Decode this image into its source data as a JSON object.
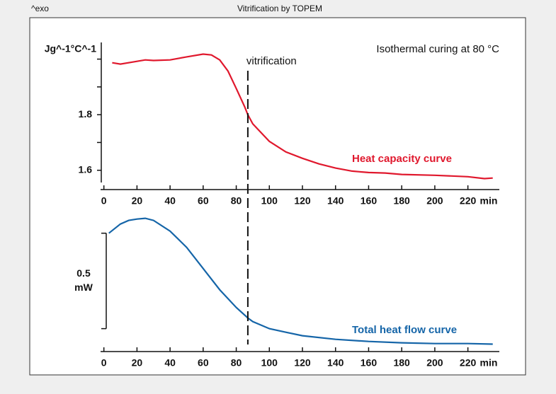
{
  "chart_data": [
    {
      "type": "line",
      "corner_label": "^exo",
      "title": "Vitrification by TOPEM",
      "subtitle": "Isothermal curing at 80 °C",
      "ylabel": "Jg^-1°C^-1",
      "x_unit": "min",
      "vline_x": 87,
      "vline_label": "vitrification",
      "xlim": [
        -2,
        239
      ],
      "xticks": [
        0,
        20,
        40,
        60,
        80,
        100,
        120,
        140,
        160,
        180,
        200,
        220
      ],
      "ylim": [
        1.556,
        2.06
      ],
      "yticks": [
        1.6,
        1.8
      ],
      "minor_yticks": [
        1.7,
        1.9,
        2.0
      ],
      "series": [
        {
          "name": "Heat capacity curve",
          "color": "#e0182d",
          "x": [
            5,
            10,
            20,
            25,
            30,
            40,
            50,
            60,
            65,
            70,
            75,
            80,
            85,
            87,
            90,
            100,
            110,
            120,
            130,
            140,
            150,
            160,
            170,
            180,
            200,
            220,
            230,
            235
          ],
          "values": [
            1.987,
            1.982,
            1.992,
            1.997,
            1.995,
            1.997,
            2.008,
            2.018,
            2.015,
            1.997,
            1.957,
            1.894,
            1.83,
            1.8,
            1.767,
            1.704,
            1.666,
            1.643,
            1.623,
            1.608,
            1.597,
            1.592,
            1.59,
            1.585,
            1.582,
            1.577,
            1.57,
            1.572
          ]
        }
      ]
    },
    {
      "type": "line",
      "x_unit": "min",
      "xlim": [
        -2,
        239
      ],
      "xticks": [
        0,
        20,
        40,
        60,
        80,
        100,
        120,
        140,
        160,
        180,
        200,
        220
      ],
      "ylim": [
        -0.12,
        0.61
      ],
      "scalebar": {
        "from": 0,
        "to": 0.5,
        "label": "0.5",
        "unit": "mW"
      },
      "series": [
        {
          "name": "Total heat flow curve",
          "color": "#1565a8",
          "x": [
            3,
            10,
            15,
            20,
            25,
            30,
            40,
            50,
            60,
            70,
            80,
            87,
            90,
            100,
            110,
            120,
            140,
            160,
            180,
            200,
            220,
            235
          ],
          "values": [
            0.5,
            0.548,
            0.567,
            0.574,
            0.578,
            0.567,
            0.511,
            0.426,
            0.315,
            0.204,
            0.111,
            0.056,
            0.037,
            0,
            -0.019,
            -0.037,
            -0.056,
            -0.067,
            -0.074,
            -0.078,
            -0.078,
            -0.081
          ]
        }
      ]
    }
  ]
}
